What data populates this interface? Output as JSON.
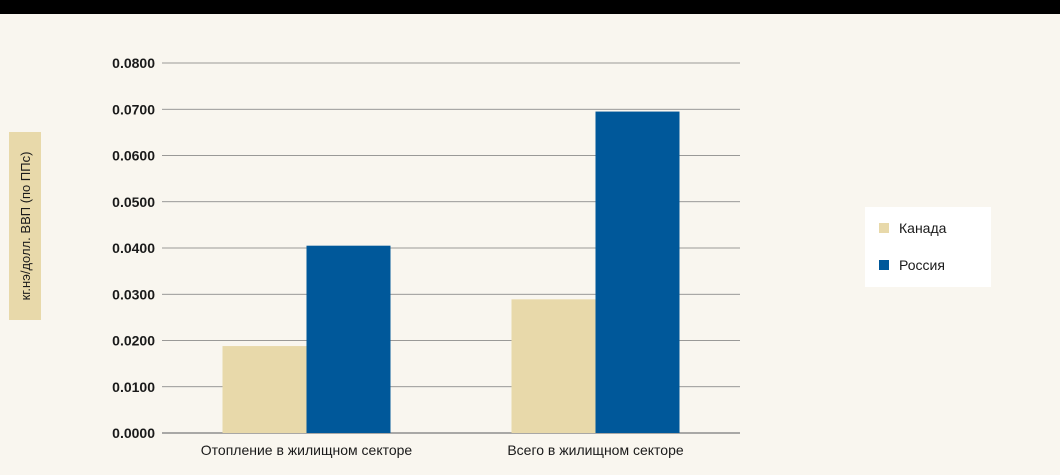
{
  "chart_data": {
    "type": "bar",
    "title": "",
    "xlabel": "",
    "ylabel": "кг.нэ/долл. ВВП (по ППс)",
    "ylim": [
      0,
      0.08
    ],
    "yticks": [
      "0.0000",
      "0.0100",
      "0.0200",
      "0.0300",
      "0.0400",
      "0.0500",
      "0.0600",
      "0.0700",
      "0.0800"
    ],
    "categories": [
      "Отопление в жилищном секторе",
      "Всего в жилищном секторе"
    ],
    "series": [
      {
        "name": "Канада",
        "values": [
          0.0188,
          0.0289
        ],
        "color": "#e8d9aa"
      },
      {
        "name": "Россия",
        "values": [
          0.0405,
          0.0695
        ],
        "color": "#00589a"
      }
    ],
    "grid": true,
    "legend_position": "right"
  },
  "colors": {
    "background": "#f9f6ef",
    "top_bar": "#000000",
    "ylabel_box": "#e8d9aa",
    "grid": "#7a7a7a"
  }
}
